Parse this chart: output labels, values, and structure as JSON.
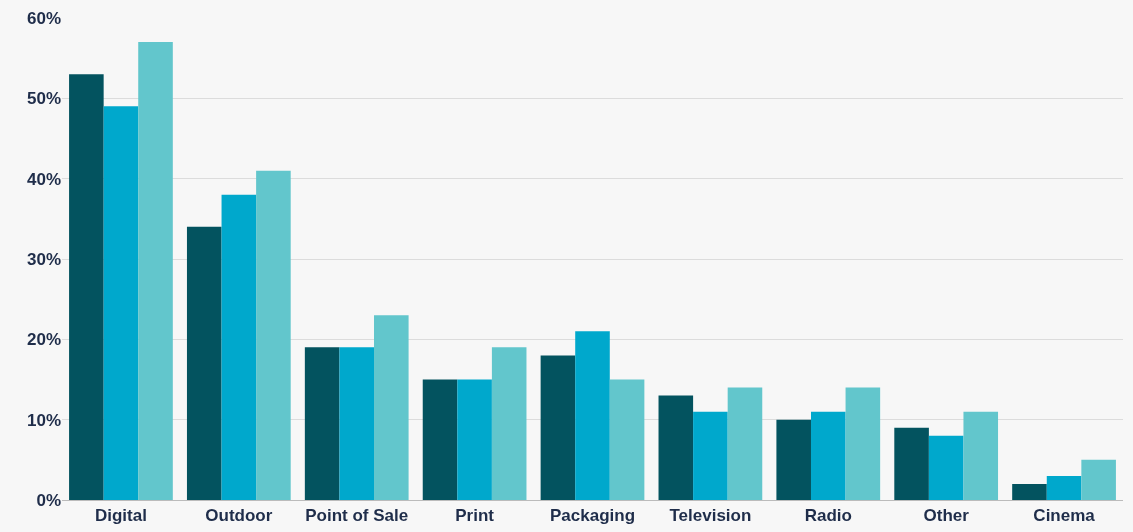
{
  "chart_data": {
    "type": "bar",
    "categories": [
      "Digital",
      "Outdoor",
      "Point of Sale",
      "Print",
      "Packaging",
      "Television",
      "Radio",
      "Other",
      "Cinema"
    ],
    "series": [
      {
        "color": "#03535f",
        "values": [
          53,
          34,
          19,
          15,
          18,
          13,
          10,
          9,
          2
        ]
      },
      {
        "color": "#00a8cc",
        "values": [
          49,
          38,
          19,
          15,
          21,
          11,
          11,
          8,
          3
        ]
      },
      {
        "color": "#62c6cc",
        "values": [
          57,
          41,
          23,
          19,
          15,
          14,
          14,
          11,
          5
        ]
      }
    ],
    "ylim": [
      0,
      60
    ],
    "yticks": [
      {
        "value": 0,
        "label": "0%"
      },
      {
        "value": 10,
        "label": "10%"
      },
      {
        "value": 20,
        "label": "20%"
      },
      {
        "value": 30,
        "label": "30%"
      },
      {
        "value": 40,
        "label": "40%"
      },
      {
        "value": 50,
        "label": "50%"
      },
      {
        "value": 60,
        "label": "60%"
      }
    ],
    "grid": "y"
  }
}
